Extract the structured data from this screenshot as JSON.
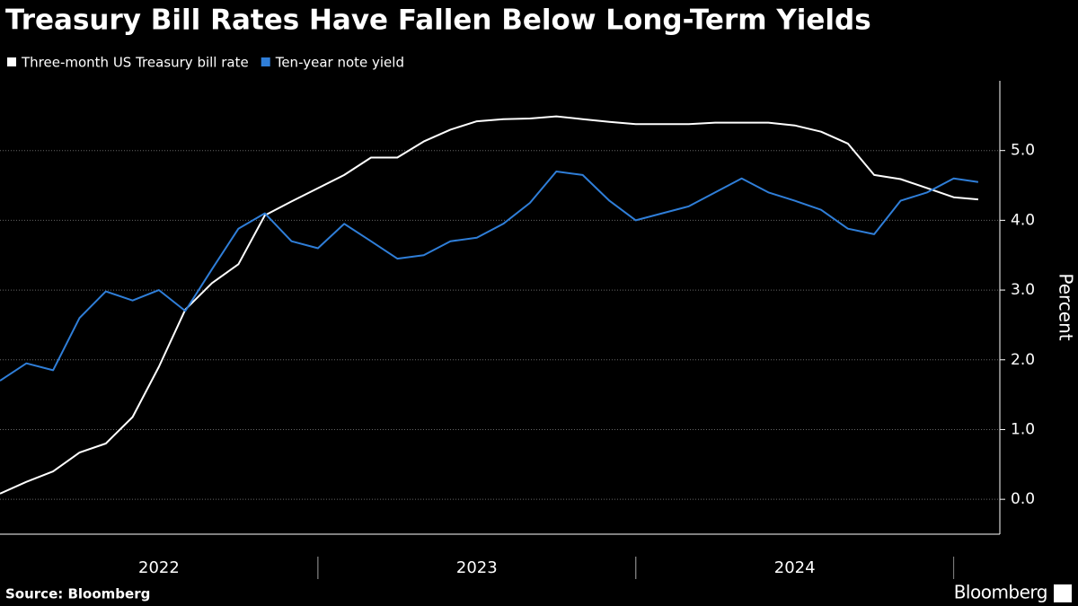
{
  "chart_data": {
    "type": "line",
    "title": "Treasury Bill Rates Have Fallen Below Long-Term Yields",
    "source": "Source: Bloomberg",
    "brand": "Bloomberg",
    "y_label": "Percent",
    "x": [
      2022.0,
      2022.083,
      2022.167,
      2022.25,
      2022.333,
      2022.417,
      2022.5,
      2022.583,
      2022.667,
      2022.75,
      2022.833,
      2022.917,
      2023.0,
      2023.083,
      2023.167,
      2023.25,
      2023.333,
      2023.417,
      2023.5,
      2023.583,
      2023.667,
      2023.75,
      2023.833,
      2023.917,
      2024.0,
      2024.083,
      2024.167,
      2024.25,
      2024.333,
      2024.417,
      2024.5,
      2024.583,
      2024.667,
      2024.75,
      2024.833,
      2024.917,
      2025.0,
      2025.077
    ],
    "series": [
      {
        "name": "Three-month US Treasury bill rate",
        "color": "#ffffff",
        "values": [
          0.08,
          0.25,
          0.4,
          0.67,
          0.8,
          1.18,
          1.9,
          2.72,
          3.1,
          3.37,
          4.07,
          4.27,
          4.46,
          4.65,
          4.9,
          4.9,
          5.13,
          5.3,
          5.42,
          5.45,
          5.46,
          5.49,
          5.45,
          5.41,
          5.38,
          5.38,
          5.38,
          5.4,
          5.4,
          5.4,
          5.36,
          5.27,
          5.1,
          4.65,
          4.59,
          4.46,
          4.33,
          4.3
        ]
      },
      {
        "name": "Ten-year note yield",
        "color": "#2f7ed8",
        "values": [
          1.7,
          1.95,
          1.85,
          2.6,
          2.98,
          2.85,
          3.0,
          2.7,
          3.3,
          3.88,
          4.1,
          3.7,
          3.6,
          3.95,
          3.7,
          3.45,
          3.5,
          3.7,
          3.75,
          3.95,
          4.25,
          4.7,
          4.65,
          4.28,
          4.0,
          4.1,
          4.2,
          4.4,
          4.6,
          4.4,
          4.28,
          4.15,
          3.88,
          3.8,
          4.28,
          4.4,
          4.6,
          4.55
        ]
      }
    ],
    "xlim": [
      2022.0,
      2025.1
    ],
    "xticks": [
      {
        "value": 2022.5,
        "label": "2022"
      },
      {
        "value": 2023.5,
        "label": "2023"
      },
      {
        "value": 2024.5,
        "label": "2024"
      }
    ],
    "ylim": [
      -0.5,
      6.0
    ],
    "yticks": [
      {
        "value": 0,
        "label": "0.0"
      },
      {
        "value": 1,
        "label": "1.0"
      },
      {
        "value": 2,
        "label": "2.0"
      },
      {
        "value": 3,
        "label": "3.0"
      },
      {
        "value": 4,
        "label": "4.0"
      },
      {
        "value": 5,
        "label": "5.0"
      }
    ],
    "grid": true
  }
}
